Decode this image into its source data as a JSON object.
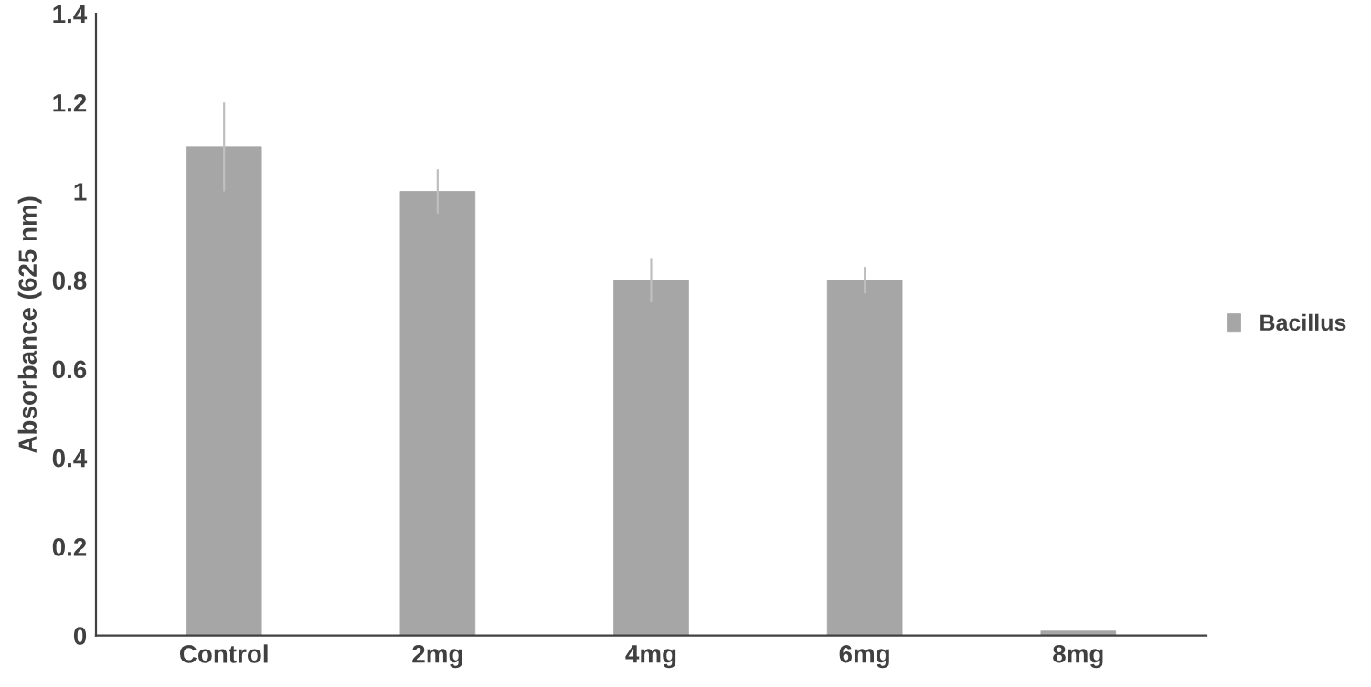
{
  "chart_data": {
    "type": "bar",
    "ylabel": "Absorbance (625 nm)",
    "categories": [
      "Control",
      "2mg",
      "4mg",
      "6mg",
      "8mg"
    ],
    "series": [
      {
        "name": "Bacillus",
        "color": "#a6a6a6",
        "values": [
          1.1,
          1.0,
          0.8,
          0.8,
          0.01
        ],
        "errors": [
          0.1,
          0.05,
          0.05,
          0.03,
          null
        ]
      }
    ],
    "ylim": [
      0,
      1.4
    ],
    "yticks": [
      0,
      0.2,
      0.4,
      0.6,
      0.8,
      1,
      1.2,
      1.4
    ],
    "grid": false,
    "legend": "right"
  }
}
